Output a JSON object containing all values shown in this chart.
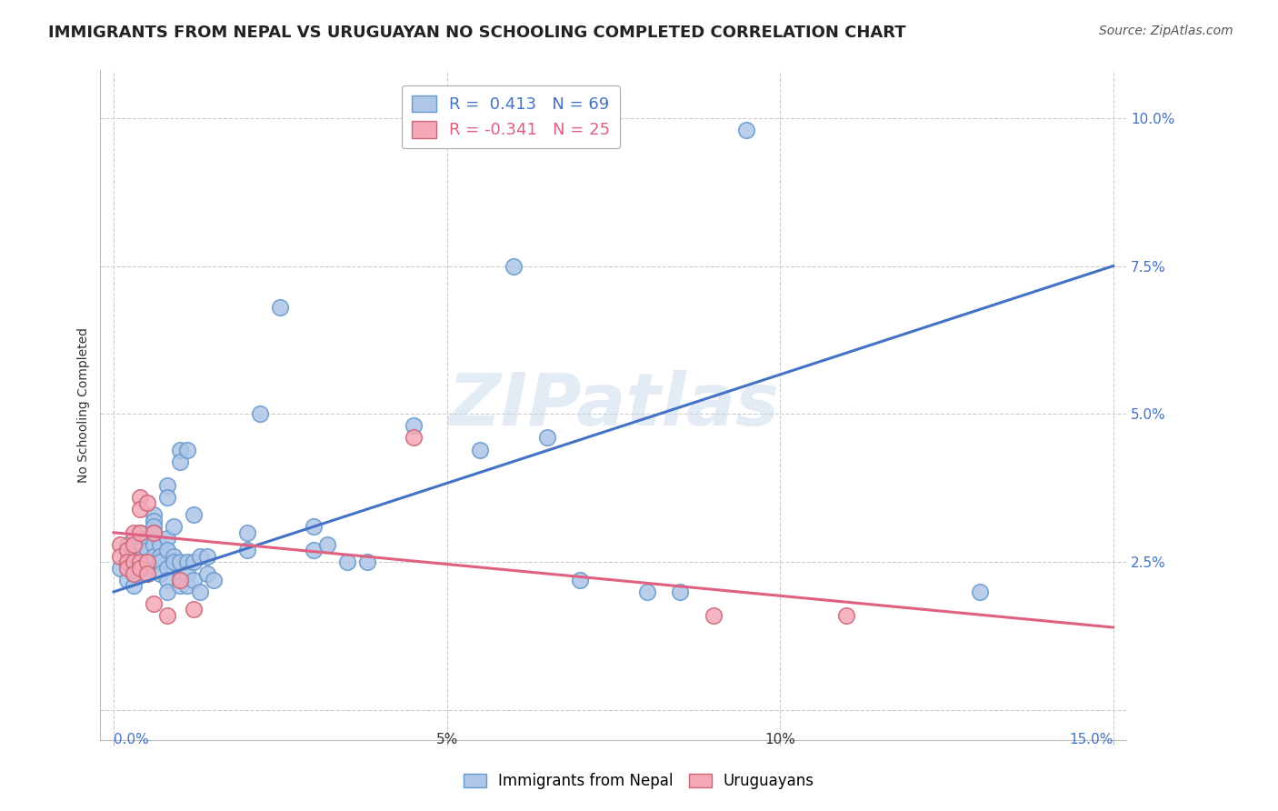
{
  "title": "IMMIGRANTS FROM NEPAL VS URUGUAYAN NO SCHOOLING COMPLETED CORRELATION CHART",
  "source": "Source: ZipAtlas.com",
  "ylabel": "No Schooling Completed",
  "yticks": [
    0.0,
    0.025,
    0.05,
    0.075,
    0.1
  ],
  "ytick_labels": [
    "",
    "2.5%",
    "5.0%",
    "7.5%",
    "10.0%"
  ],
  "xtick_positions": [
    0.0,
    0.05,
    0.1,
    0.15
  ],
  "xlim": [
    -0.002,
    0.152
  ],
  "ylim": [
    -0.005,
    0.108
  ],
  "watermark": "ZIPatlas",
  "blue_scatter": [
    [
      0.001,
      0.024
    ],
    [
      0.002,
      0.028
    ],
    [
      0.002,
      0.022
    ],
    [
      0.003,
      0.026
    ],
    [
      0.003,
      0.023
    ],
    [
      0.003,
      0.021
    ],
    [
      0.004,
      0.03
    ],
    [
      0.004,
      0.027
    ],
    [
      0.004,
      0.025
    ],
    [
      0.005,
      0.029
    ],
    [
      0.005,
      0.027
    ],
    [
      0.005,
      0.025
    ],
    [
      0.005,
      0.024
    ],
    [
      0.005,
      0.023
    ],
    [
      0.006,
      0.033
    ],
    [
      0.006,
      0.032
    ],
    [
      0.006,
      0.031
    ],
    [
      0.006,
      0.03
    ],
    [
      0.006,
      0.028
    ],
    [
      0.006,
      0.026
    ],
    [
      0.007,
      0.028
    ],
    [
      0.007,
      0.026
    ],
    [
      0.007,
      0.025
    ],
    [
      0.007,
      0.023
    ],
    [
      0.008,
      0.038
    ],
    [
      0.008,
      0.036
    ],
    [
      0.008,
      0.029
    ],
    [
      0.008,
      0.027
    ],
    [
      0.008,
      0.024
    ],
    [
      0.008,
      0.022
    ],
    [
      0.008,
      0.02
    ],
    [
      0.009,
      0.031
    ],
    [
      0.009,
      0.026
    ],
    [
      0.009,
      0.025
    ],
    [
      0.01,
      0.044
    ],
    [
      0.01,
      0.042
    ],
    [
      0.01,
      0.025
    ],
    [
      0.01,
      0.022
    ],
    [
      0.01,
      0.021
    ],
    [
      0.011,
      0.044
    ],
    [
      0.011,
      0.025
    ],
    [
      0.011,
      0.023
    ],
    [
      0.011,
      0.021
    ],
    [
      0.012,
      0.033
    ],
    [
      0.012,
      0.025
    ],
    [
      0.012,
      0.022
    ],
    [
      0.013,
      0.026
    ],
    [
      0.013,
      0.02
    ],
    [
      0.014,
      0.026
    ],
    [
      0.014,
      0.023
    ],
    [
      0.015,
      0.022
    ],
    [
      0.02,
      0.03
    ],
    [
      0.02,
      0.027
    ],
    [
      0.022,
      0.05
    ],
    [
      0.025,
      0.068
    ],
    [
      0.03,
      0.031
    ],
    [
      0.03,
      0.027
    ],
    [
      0.032,
      0.028
    ],
    [
      0.035,
      0.025
    ],
    [
      0.038,
      0.025
    ],
    [
      0.045,
      0.048
    ],
    [
      0.055,
      0.044
    ],
    [
      0.06,
      0.075
    ],
    [
      0.065,
      0.046
    ],
    [
      0.07,
      0.022
    ],
    [
      0.08,
      0.02
    ],
    [
      0.085,
      0.02
    ],
    [
      0.095,
      0.098
    ],
    [
      0.13,
      0.02
    ]
  ],
  "pink_scatter": [
    [
      0.001,
      0.028
    ],
    [
      0.001,
      0.026
    ],
    [
      0.002,
      0.027
    ],
    [
      0.002,
      0.025
    ],
    [
      0.002,
      0.024
    ],
    [
      0.003,
      0.03
    ],
    [
      0.003,
      0.028
    ],
    [
      0.003,
      0.025
    ],
    [
      0.003,
      0.023
    ],
    [
      0.004,
      0.036
    ],
    [
      0.004,
      0.034
    ],
    [
      0.004,
      0.03
    ],
    [
      0.004,
      0.025
    ],
    [
      0.004,
      0.024
    ],
    [
      0.005,
      0.035
    ],
    [
      0.005,
      0.025
    ],
    [
      0.005,
      0.023
    ],
    [
      0.006,
      0.03
    ],
    [
      0.006,
      0.018
    ],
    [
      0.008,
      0.016
    ],
    [
      0.01,
      0.022
    ],
    [
      0.012,
      0.017
    ],
    [
      0.045,
      0.046
    ],
    [
      0.09,
      0.016
    ],
    [
      0.11,
      0.016
    ]
  ],
  "blue_line": [
    [
      0.0,
      0.02
    ],
    [
      0.15,
      0.075
    ]
  ],
  "pink_line": [
    [
      0.0,
      0.03
    ],
    [
      0.15,
      0.014
    ]
  ],
  "dot_color_blue": "#aec6e8",
  "dot_edge_blue": "#6699cc",
  "dot_color_pink": "#f4a8b8",
  "dot_edge_pink": "#cc6677",
  "line_color_blue": "#4472c4",
  "line_color_pink": "#e06080",
  "grid_color": "#cccccc",
  "background_color": "#ffffff",
  "title_fontsize": 13,
  "axis_label_fontsize": 10,
  "tick_fontsize": 11,
  "source_fontsize": 10
}
